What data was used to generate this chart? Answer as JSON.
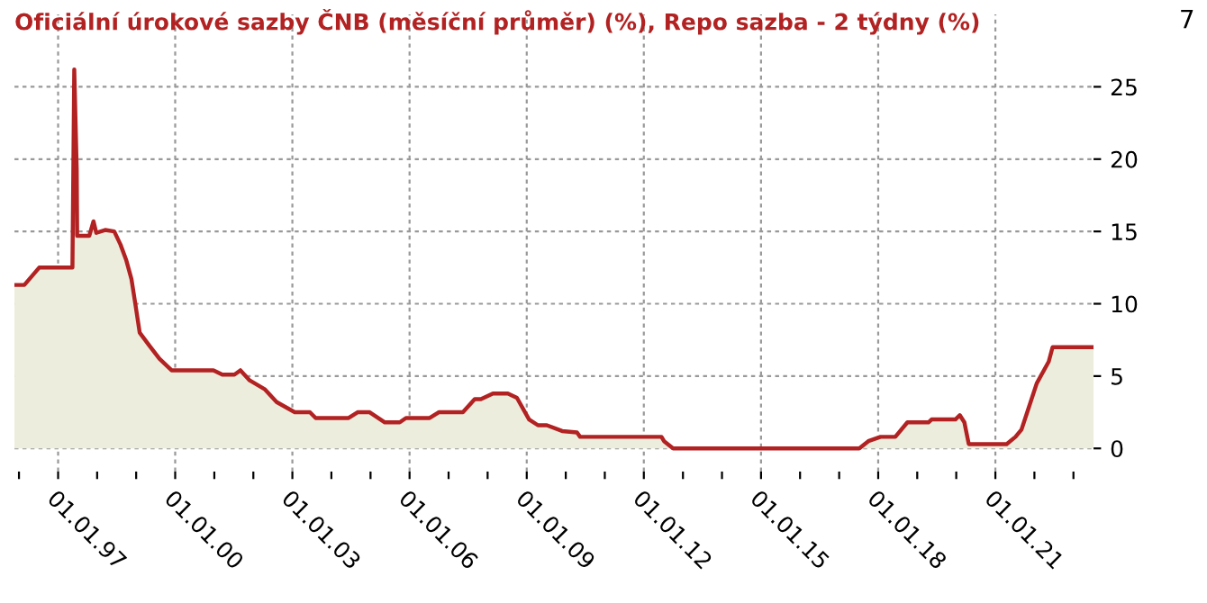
{
  "chart_data": {
    "type": "area",
    "title": "Oficiální úrokové sazby ČNB (měsíční průměr) (%), Repo sazba - 2 týdny (%)",
    "annotations": [
      "7"
    ],
    "x": [
      "1995-11-20",
      "1996-02-20",
      "1996-07-08",
      "1997-05-15",
      "1997-06-01",
      "1997-06-24",
      "1997-06-28",
      "1997-10-20",
      "1997-11-28",
      "1997-12-24",
      "1998-03-17",
      "1998-06-10",
      "1998-08-07",
      "1998-10-01",
      "1998-11-18",
      "1998-12-24",
      "1999-02-03",
      "1999-05-05",
      "1999-08-07",
      "1999-11-28",
      "2000-12-24",
      "2001-03-17",
      "2001-07-08",
      "2001-09-02",
      "2001-11-28",
      "2002-04-16",
      "2002-08-07",
      "2003-01-23",
      "2003-06-14",
      "2003-08-07",
      "2004-06-10",
      "2004-09-02",
      "2004-12-24",
      "2005-05-15",
      "2005-10-01",
      "2005-11-28",
      "2006-07-08",
      "2006-10-01",
      "2007-05-15",
      "2007-09-02",
      "2007-10-30",
      "2008-02-20",
      "2008-07-08",
      "2008-10-01",
      "2009-01-23",
      "2009-04-16",
      "2009-07-08",
      "2009-11-28",
      "2010-04-16",
      "2010-05-15",
      "2012-06-14",
      "2012-07-08",
      "2012-10-01",
      "2017-07-08",
      "2017-10-01",
      "2018-01-23",
      "2018-06-10",
      "2018-10-01",
      "2019-04-16",
      "2019-05-15",
      "2019-12-24",
      "2020-02-03",
      "2020-03-17",
      "2020-04-27",
      "2021-04-16",
      "2021-07-08",
      "2021-09-02",
      "2021-10-30",
      "2022-01-23",
      "2022-05-15",
      "2022-06-20",
      "2023-07-08"
    ],
    "series": [
      {
        "color": "#b22222",
        "values": [
          11.3,
          11.3,
          12.5,
          12.5,
          26.2,
          19.3,
          14.7,
          14.7,
          15.7,
          14.9,
          15.1,
          15.0,
          14.1,
          13.0,
          11.7,
          10.0,
          8.0,
          7.1,
          6.2,
          5.4,
          5.4,
          5.1,
          5.1,
          5.4,
          4.7,
          4.1,
          3.2,
          2.5,
          2.5,
          2.1,
          2.1,
          2.5,
          2.5,
          1.8,
          1.8,
          2.1,
          2.1,
          2.5,
          2.5,
          3.4,
          3.4,
          3.8,
          3.8,
          3.5,
          2.0,
          1.6,
          1.6,
          1.2,
          1.1,
          0.8,
          0.8,
          0.5,
          0.0,
          0.0,
          0.5,
          0.8,
          0.8,
          1.8,
          1.8,
          2.0,
          2.0,
          2.3,
          1.8,
          0.3,
          0.3,
          0.8,
          1.3,
          2.6,
          4.5,
          6.0,
          7.0,
          7.0
        ]
      }
    ],
    "xlim": [
      "1995-11-20",
      "2023-07-08"
    ],
    "ylim": [
      -1.6,
      30
    ],
    "xticks": [
      {
        "value": "1996-01-01",
        "label": null
      },
      {
        "value": "1997-01-01",
        "label": "01.01.97"
      },
      {
        "value": "1998-01-01",
        "label": null
      },
      {
        "value": "1999-01-01",
        "label": null
      },
      {
        "value": "2000-01-01",
        "label": "01.01.00"
      },
      {
        "value": "2001-01-01",
        "label": null
      },
      {
        "value": "2002-01-01",
        "label": null
      },
      {
        "value": "2003-01-01",
        "label": "01.01.03"
      },
      {
        "value": "2004-01-01",
        "label": null
      },
      {
        "value": "2005-01-01",
        "label": null
      },
      {
        "value": "2006-01-01",
        "label": "01.01.06"
      },
      {
        "value": "2007-01-01",
        "label": null
      },
      {
        "value": "2008-01-01",
        "label": null
      },
      {
        "value": "2009-01-01",
        "label": "01.01.09"
      },
      {
        "value": "2010-01-01",
        "label": null
      },
      {
        "value": "2011-01-01",
        "label": null
      },
      {
        "value": "2012-01-01",
        "label": "01.01.12"
      },
      {
        "value": "2013-01-01",
        "label": null
      },
      {
        "value": "2014-01-01",
        "label": null
      },
      {
        "value": "2015-01-01",
        "label": "01.01.15"
      },
      {
        "value": "2016-01-01",
        "label": null
      },
      {
        "value": "2017-01-01",
        "label": null
      },
      {
        "value": "2018-01-01",
        "label": "01.01.18"
      },
      {
        "value": "2019-01-01",
        "label": null
      },
      {
        "value": "2020-01-01",
        "label": null
      },
      {
        "value": "2021-01-01",
        "label": "01.01.21"
      },
      {
        "value": "2022-01-01",
        "label": null
      },
      {
        "value": "2023-01-01",
        "label": null
      }
    ],
    "yticks": [
      0,
      5,
      10,
      15,
      20,
      25
    ],
    "grid": true
  }
}
